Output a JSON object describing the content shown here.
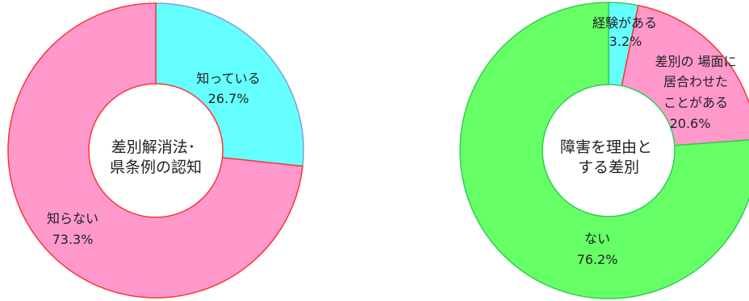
{
  "chart_data": [
    {
      "type": "pie",
      "title": "",
      "center_label": [
        "差別解消法･",
        "県条例の認知"
      ],
      "slices": [
        {
          "label": "知っている",
          "value": 26.7,
          "value_text": "26.7%",
          "color": "#66FFFF",
          "stroke": "#7F9FD4"
        },
        {
          "label": "知らない",
          "value": 73.3,
          "value_text": "73.3%",
          "color": "#FF99CC",
          "stroke": "#FF3333"
        }
      ]
    },
    {
      "type": "pie",
      "title": "",
      "center_label": [
        "障害を理由と",
        "する差別"
      ],
      "slices": [
        {
          "label": "経験がある",
          "value": 3.2,
          "value_text": "3.2%",
          "color": "#66FFFF",
          "stroke": "#33CC55"
        },
        {
          "label": "差別の場面に居合わせたことがある",
          "label_lines": [
            "差別の 場面に",
            "居合わせた",
            "ことがある"
          ],
          "value": 20.6,
          "value_text": "20.6%",
          "color": "#FF99CC",
          "stroke": "#FF3333"
        },
        {
          "label": "ない",
          "value": 76.2,
          "value_text": "76.2%",
          "color": "#66FF66",
          "stroke": "#33CC55"
        }
      ]
    }
  ]
}
